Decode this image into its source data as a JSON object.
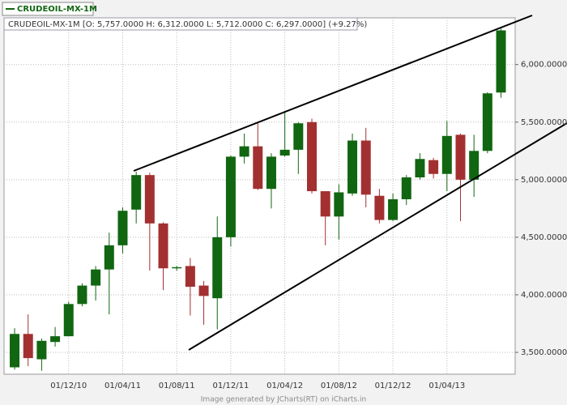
{
  "chart_data": {
    "type": "candlestick",
    "legend": "CRUDEOIL-MX-1M",
    "subtitle": "CRUDEOIL-MX-1M [O: 5,757.0000  H: 6,312.0000  L: 5,712.0000  C: 6,297.0000] (+9.27%)",
    "footer": "Image generated by JCharts(RT) on iCharts.in",
    "categories": [
      null,
      null,
      null,
      null,
      "01/12/10",
      null,
      null,
      null,
      "01/04/11",
      null,
      null,
      null,
      "01/08/11",
      null,
      null,
      null,
      "01/12/11",
      null,
      null,
      null,
      "01/04/12",
      null,
      null,
      null,
      "01/08/12",
      null,
      null,
      null,
      "01/12/12",
      null,
      null,
      null,
      "01/04/13",
      null,
      null,
      null,
      null
    ],
    "open": [
      3370,
      3660,
      3440,
      3590,
      3640,
      3920,
      4080,
      4220,
      4430,
      4740,
      5040,
      4620,
      4230,
      4250,
      4080,
      3970,
      4500,
      5200,
      5290,
      4920,
      5210,
      5260,
      5500,
      4900,
      4680,
      4880,
      5340,
      4860,
      4650,
      4830,
      5020,
      5170,
      5050,
      5390,
      5000,
      5250,
      5757
    ],
    "high": [
      3710,
      3830,
      3620,
      3720,
      3940,
      4100,
      4250,
      4540,
      4760,
      5070,
      5060,
      4630,
      4250,
      4320,
      4120,
      4680,
      5210,
      5400,
      5490,
      5230,
      5580,
      5500,
      5530,
      4900,
      4960,
      5400,
      5450,
      4920,
      4880,
      5040,
      5230,
      5190,
      5510,
      5400,
      5390,
      5760,
      6312
    ],
    "low": [
      3350,
      3380,
      3340,
      3550,
      3640,
      3900,
      3950,
      3830,
      4360,
      4620,
      4210,
      4040,
      4210,
      3820,
      3740,
      3700,
      4420,
      5140,
      4910,
      4750,
      5200,
      5050,
      4880,
      4430,
      4480,
      4860,
      4760,
      4620,
      4640,
      4780,
      5000,
      5010,
      4900,
      4640,
      4850,
      5230,
      5712
    ],
    "close": [
      3660,
      3450,
      3600,
      3640,
      3920,
      4080,
      4220,
      4430,
      4730,
      5040,
      4620,
      4230,
      4240,
      4070,
      3990,
      4500,
      5200,
      5290,
      4920,
      5200,
      5260,
      5490,
      4900,
      4680,
      4890,
      5340,
      4870,
      4650,
      4830,
      5020,
      5180,
      5050,
      5380,
      5000,
      5250,
      5750,
      6297
    ],
    "up_color": "#116611",
    "down_color": "#a33030",
    "ylim": [
      3310,
      6385
    ],
    "yticks": [
      {
        "value": 3500,
        "label": "3,500.0000"
      },
      {
        "value": 4000,
        "label": "4,000.0000"
      },
      {
        "value": 4500,
        "label": "4,500.0000"
      },
      {
        "value": 5000,
        "label": "5,000.0000"
      },
      {
        "value": 5500,
        "label": "5,500.0000"
      },
      {
        "value": 6000,
        "label": "6,000.0000"
      }
    ],
    "grid": true
  }
}
